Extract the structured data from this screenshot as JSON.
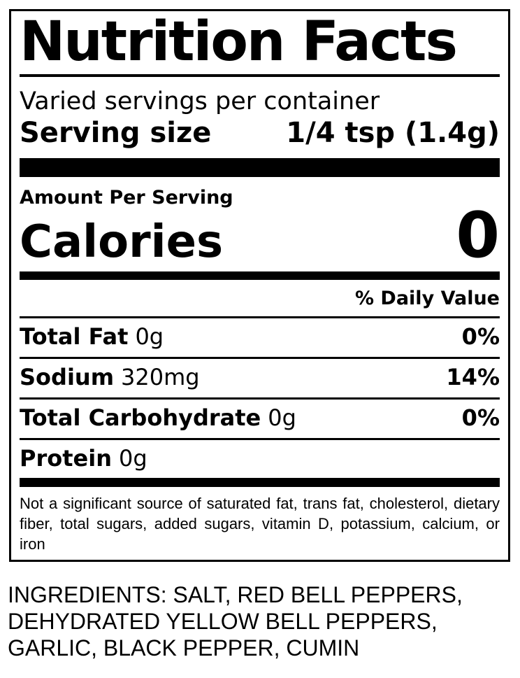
{
  "nutrition_label": {
    "title": "Nutrition Facts",
    "servings_per_container": "Varied servings per container",
    "serving_size": {
      "label": "Serving size",
      "value": "1/4 tsp (1.4g)"
    },
    "amount_per_serving_label": "Amount Per Serving",
    "calories": {
      "label": "Calories",
      "value": "0"
    },
    "daily_value_header": "% Daily Value",
    "nutrients": [
      {
        "name": "Total Fat",
        "amount": "0g",
        "daily_value": "0%"
      },
      {
        "name": "Sodium",
        "amount": "320mg",
        "daily_value": "14%"
      },
      {
        "name": "Total Carbohydrate",
        "amount": "0g",
        "daily_value": "0%"
      },
      {
        "name": "Protein",
        "amount": "0g",
        "daily_value": ""
      }
    ],
    "footnote": "Not a significant source of saturated fat, trans fat, cholesterol, dietary fiber, total sugars, added sugars, vitamin D, potassium, calcium, or iron"
  },
  "ingredients_statement": "INGREDIENTS: SALT, RED BELL PEPPERS, DEHYDRATED YELLOW BELL PEPPERS, GARLIC, BLACK PEPPER, CUMIN",
  "colors": {
    "ink": "#000000",
    "background": "#ffffff"
  }
}
